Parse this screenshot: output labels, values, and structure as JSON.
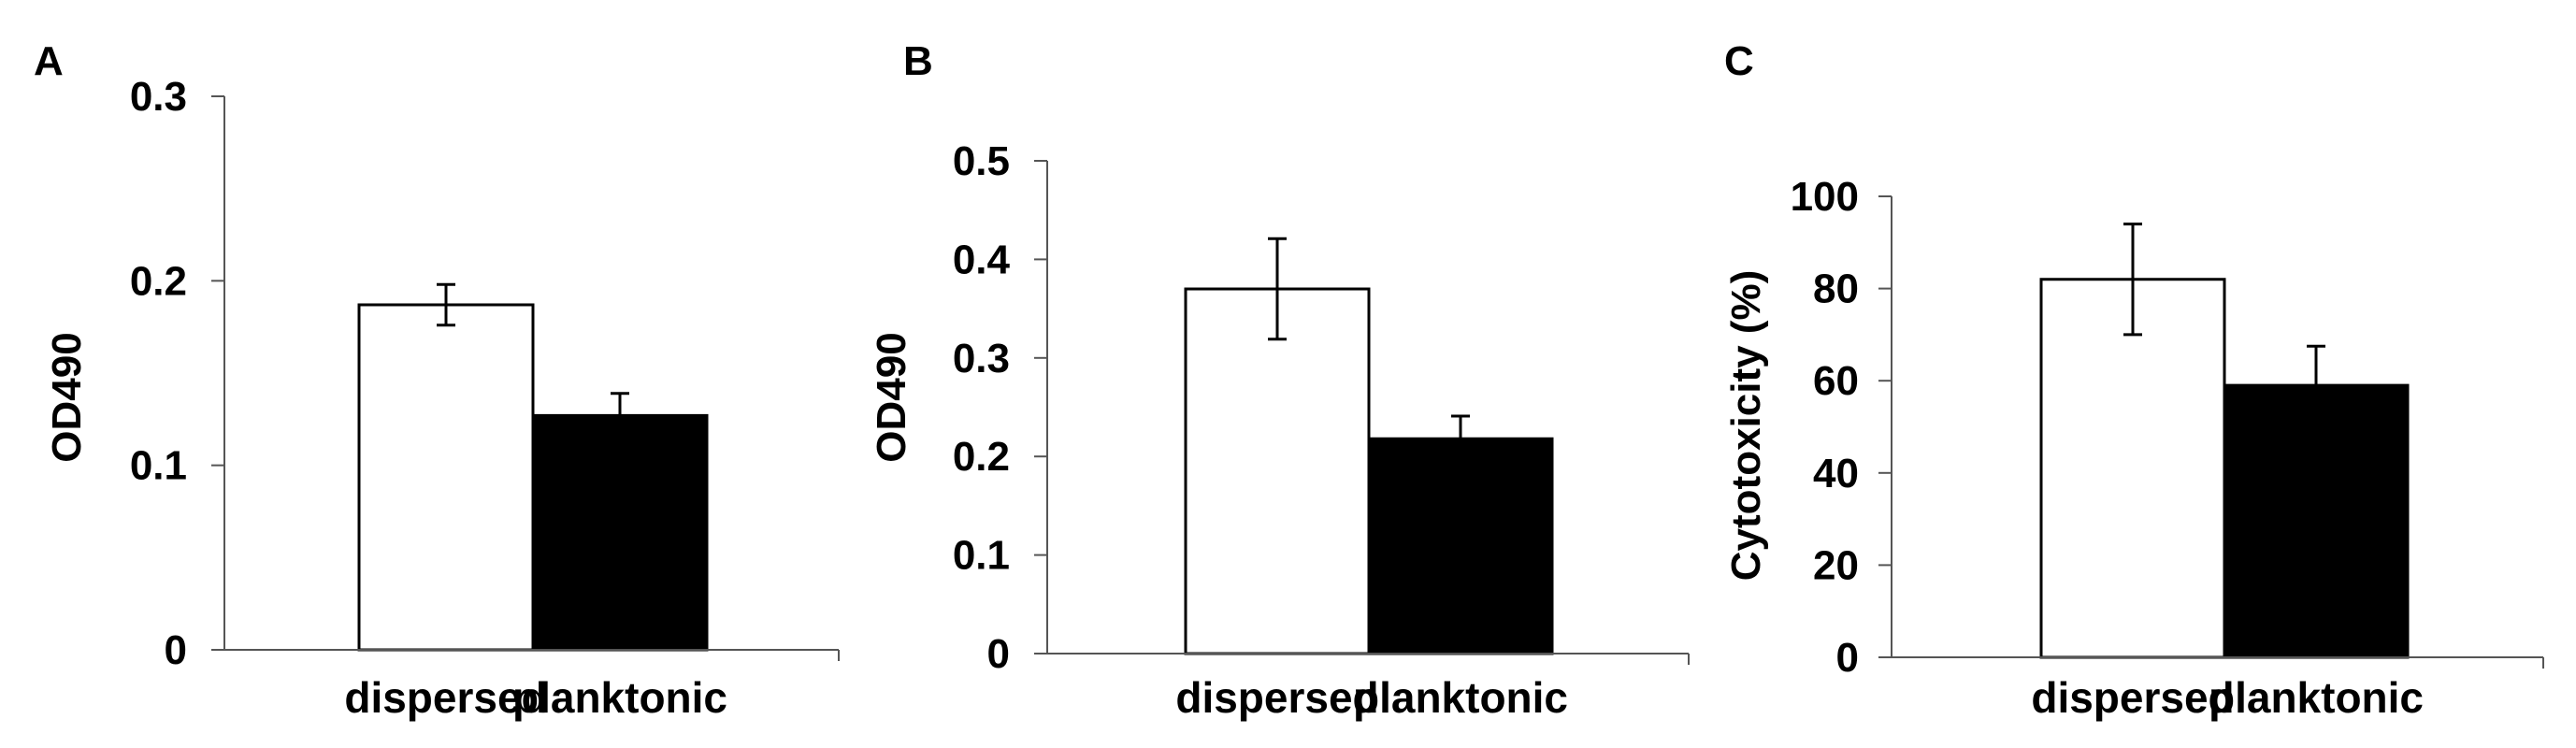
{
  "chart_data": [
    {
      "type": "bar",
      "panel": "A",
      "title": "",
      "xlabel": "",
      "ylabel": "OD490",
      "ylim": [
        0,
        0.3
      ],
      "yticks": [
        0,
        0.1,
        0.2,
        0.3
      ],
      "ytick_labels": [
        "0",
        "0.1",
        "0.2",
        "0.3"
      ],
      "categories": [
        "dispersed",
        "planktonic"
      ],
      "values": [
        0.187,
        0.127
      ],
      "errors": [
        0.011,
        0.012
      ],
      "bar_colors": [
        "#ffffff",
        "#000000"
      ],
      "grid": false,
      "legend": "none"
    },
    {
      "type": "bar",
      "panel": "B",
      "title": "",
      "xlabel": "",
      "ylabel": "OD490",
      "ylim": [
        0,
        0.5
      ],
      "yticks": [
        0,
        0.1,
        0.2,
        0.3,
        0.4,
        0.5
      ],
      "ytick_labels": [
        "0",
        "0.1",
        "0.2",
        "0.3",
        "0.4",
        "0.5"
      ],
      "categories": [
        "dispersed",
        "planktonic"
      ],
      "values": [
        0.37,
        0.218
      ],
      "errors": [
        0.051,
        0.023
      ],
      "bar_colors": [
        "#ffffff",
        "#000000"
      ],
      "grid": false,
      "legend": "none"
    },
    {
      "type": "bar",
      "panel": "C",
      "title": "",
      "xlabel": "",
      "ylabel": "Cytotoxicity (%)",
      "ylim": [
        0,
        100
      ],
      "yticks": [
        0,
        20,
        40,
        60,
        80,
        100
      ],
      "ytick_labels": [
        "0",
        "20",
        "40",
        "60",
        "80",
        "100"
      ],
      "categories": [
        "dispersed",
        "planktonic"
      ],
      "values": [
        82,
        59
      ],
      "errors": [
        12,
        8.5
      ],
      "bar_colors": [
        "#ffffff",
        "#000000"
      ],
      "grid": false,
      "legend": "none"
    }
  ]
}
